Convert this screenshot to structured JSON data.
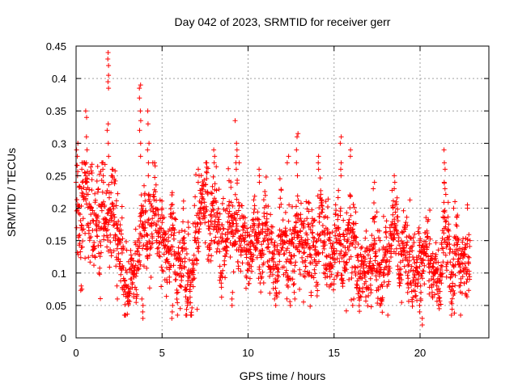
{
  "chart_data": {
    "type": "scatter",
    "title": "Day 042 of 2023, SRMTID for receiver gerr",
    "xlabel": "GPS time / hours",
    "ylabel": "SRMTID / TECUs",
    "xlim": [
      0,
      24
    ],
    "ylim": [
      0,
      0.45
    ],
    "xticks": [
      0,
      5,
      10,
      15,
      20
    ],
    "yticks": [
      0,
      0.05,
      0.1,
      0.15,
      0.2,
      0.25,
      0.3,
      0.35,
      0.4,
      0.45
    ],
    "xtick_labels": [
      "0",
      "5",
      "10",
      "15",
      "20"
    ],
    "ytick_labels": [
      "0",
      "0.05",
      "0.1",
      "0.15",
      "0.2",
      "0.25",
      "0.3",
      "0.35",
      "0.4",
      "0.45"
    ],
    "grid": true,
    "marker": "plus",
    "marker_color": "#ff0000",
    "envelope": {
      "x": [
        0,
        0.5,
        1,
        1.5,
        2,
        2.5,
        3,
        3.5,
        4,
        4.5,
        5,
        5.5,
        6,
        6.5,
        7,
        7.5,
        8,
        8.5,
        9,
        9.5,
        10,
        10.5,
        11,
        11.5,
        12,
        12.5,
        13,
        13.5,
        14,
        14.5,
        15,
        15.5,
        16,
        16.5,
        17,
        17.5,
        18,
        18.5,
        19,
        19.5,
        20,
        20.5,
        21,
        21.5,
        22,
        22.5,
        23
      ],
      "center": [
        0.19,
        0.2,
        0.19,
        0.2,
        0.19,
        0.15,
        0.12,
        0.13,
        0.15,
        0.18,
        0.15,
        0.13,
        0.12,
        0.13,
        0.16,
        0.18,
        0.17,
        0.16,
        0.17,
        0.16,
        0.14,
        0.15,
        0.15,
        0.14,
        0.15,
        0.14,
        0.14,
        0.16,
        0.18,
        0.15,
        0.14,
        0.15,
        0.15,
        0.13,
        0.12,
        0.14,
        0.14,
        0.13,
        0.14,
        0.13,
        0.11,
        0.12,
        0.11,
        0.13,
        0.13,
        0.13,
        0.13
      ],
      "spread": [
        0.07,
        0.07,
        0.06,
        0.07,
        0.06,
        0.05,
        0.04,
        0.04,
        0.05,
        0.05,
        0.05,
        0.05,
        0.05,
        0.05,
        0.05,
        0.05,
        0.05,
        0.05,
        0.06,
        0.06,
        0.05,
        0.05,
        0.05,
        0.05,
        0.05,
        0.05,
        0.05,
        0.05,
        0.05,
        0.05,
        0.05,
        0.05,
        0.05,
        0.05,
        0.04,
        0.05,
        0.05,
        0.04,
        0.05,
        0.05,
        0.04,
        0.04,
        0.04,
        0.05,
        0.05,
        0.04,
        0.04
      ]
    },
    "n_points": 2400,
    "spikes": [
      {
        "x": 0.05,
        "y": [
          0.3,
          0.29,
          0.28,
          0.25,
          0.24
        ]
      },
      {
        "x": 0.35,
        "y": [
          0.26,
          0.24,
          0.23
        ]
      },
      {
        "x": 0.3,
        "y": [
          0.08,
          0.075
        ]
      },
      {
        "x": 0.6,
        "y": [
          0.35,
          0.34,
          0.31,
          0.29,
          0.25,
          0.24
        ]
      },
      {
        "x": 1.6,
        "y": [
          0.26,
          0.25,
          0.24
        ]
      },
      {
        "x": 1.85,
        "y": [
          0.44,
          0.43,
          0.42,
          0.405,
          0.395,
          0.385,
          0.33,
          0.32,
          0.3,
          0.28
        ]
      },
      {
        "x": 2.1,
        "y": [
          0.26,
          0.25,
          0.24
        ]
      },
      {
        "x": 2.4,
        "y": [
          0.06,
          0.08
        ]
      },
      {
        "x": 3.7,
        "y": [
          0.39,
          0.385,
          0.37,
          0.35,
          0.335,
          0.32,
          0.3,
          0.28
        ]
      },
      {
        "x": 3.85,
        "y": [
          0.03,
          0.04,
          0.05,
          0.06
        ]
      },
      {
        "x": 4.2,
        "y": [
          0.35,
          0.33,
          0.3,
          0.29,
          0.27,
          0.25
        ]
      },
      {
        "x": 5.6,
        "y": [
          0.04,
          0.03,
          0.05
        ]
      },
      {
        "x": 6.5,
        "y": [
          0.05,
          0.06
        ]
      },
      {
        "x": 7.1,
        "y": [
          0.24,
          0.25,
          0.26
        ]
      },
      {
        "x": 8.0,
        "y": [
          0.29,
          0.28,
          0.27
        ]
      },
      {
        "x": 9.3,
        "y": [
          0.335,
          0.3,
          0.29,
          0.28,
          0.27,
          0.26
        ]
      },
      {
        "x": 9.1,
        "y": [
          0.05,
          0.06,
          0.07
        ]
      },
      {
        "x": 10.7,
        "y": [
          0.26,
          0.25,
          0.24
        ]
      },
      {
        "x": 12.3,
        "y": [
          0.28,
          0.27
        ]
      },
      {
        "x": 12.85,
        "y": [
          0.315,
          0.31,
          0.29,
          0.27,
          0.25
        ]
      },
      {
        "x": 12.7,
        "y": [
          0.06,
          0.07
        ]
      },
      {
        "x": 14.1,
        "y": [
          0.28,
          0.27,
          0.26
        ]
      },
      {
        "x": 15.4,
        "y": [
          0.31,
          0.3,
          0.27,
          0.26,
          0.25
        ]
      },
      {
        "x": 15.9,
        "y": [
          0.29,
          0.28
        ]
      },
      {
        "x": 16.1,
        "y": [
          0.05,
          0.06
        ]
      },
      {
        "x": 17.3,
        "y": [
          0.24,
          0.23
        ]
      },
      {
        "x": 17.7,
        "y": [
          0.05,
          0.06
        ]
      },
      {
        "x": 18.5,
        "y": [
          0.25,
          0.24,
          0.23
        ]
      },
      {
        "x": 20.0,
        "y": [
          0.08,
          0.07,
          0.06,
          0.05,
          0.04
        ]
      },
      {
        "x": 20.15,
        "y": [
          0.02,
          0.03
        ]
      },
      {
        "x": 21.4,
        "y": [
          0.29,
          0.27,
          0.26,
          0.24,
          0.23
        ]
      },
      {
        "x": 22.0,
        "y": [
          0.21,
          0.2
        ]
      },
      {
        "x": 22.8,
        "y": [
          0.205,
          0.2
        ]
      }
    ]
  }
}
